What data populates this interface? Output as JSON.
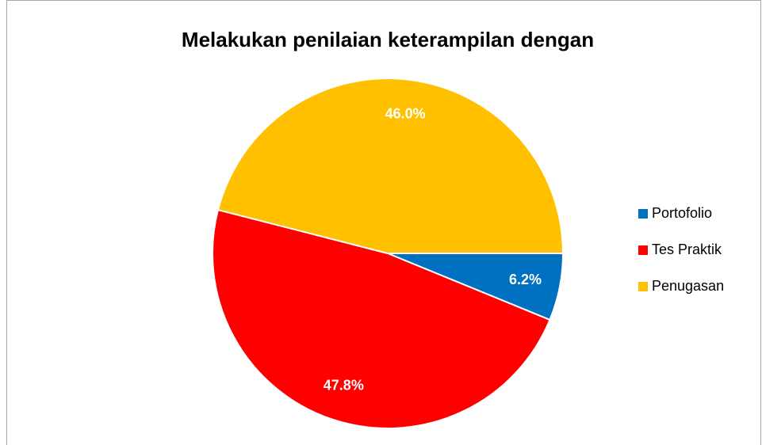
{
  "chart_data": {
    "type": "pie",
    "title": "Melakukan penilaian keterampilan dengan",
    "categories": [
      "Portofolio",
      "Tes Praktik",
      "Penugasan"
    ],
    "values": [
      6.2,
      47.8,
      46
    ],
    "value_labels": [
      "6.2%",
      "47.8%",
      "46.0%"
    ],
    "colors": [
      "#0070C0",
      "#FF0000",
      "#FFC000"
    ],
    "legend": "right"
  }
}
